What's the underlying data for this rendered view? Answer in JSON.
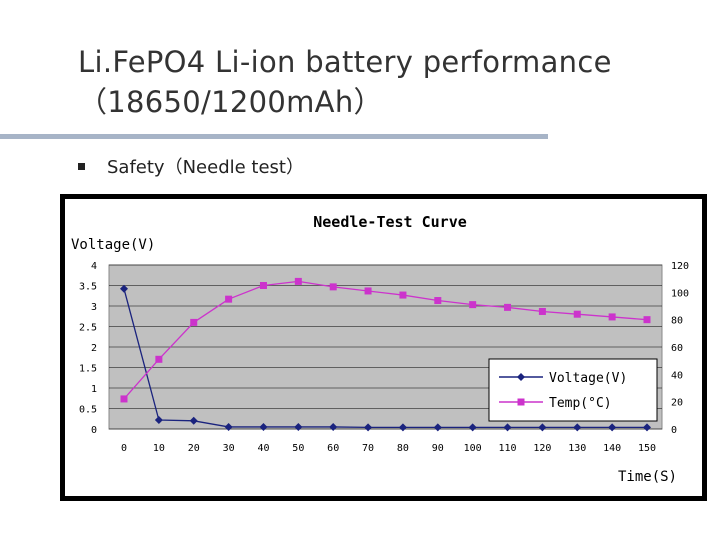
{
  "slide": {
    "title": "Li.FePO4 Li-ion battery performance（18650/1200mAh）",
    "bullet": "Safety（Needle test）"
  },
  "chart_data": {
    "type": "line",
    "title": "Needle-Test Curve",
    "xlabel": "Time(S)",
    "ylabel": "Voltage(V)",
    "x": [
      0,
      10,
      20,
      30,
      40,
      50,
      60,
      70,
      80,
      90,
      100,
      110,
      120,
      130,
      140,
      150
    ],
    "xticks": [
      "0",
      "10",
      "20",
      "30",
      "40",
      "50",
      "60",
      "70",
      "80",
      "90",
      "100",
      "110",
      "120",
      "130",
      "140",
      "150"
    ],
    "ylim": [
      0,
      4
    ],
    "yticks": [
      "0",
      "0.5",
      "1",
      "1.5",
      "2",
      "2.5",
      "3",
      "3.5",
      "4"
    ],
    "y2lim": [
      0,
      120
    ],
    "y2ticks": [
      "0",
      "20",
      "40",
      "60",
      "80",
      "100",
      "120"
    ],
    "grid": true,
    "legend_position": "bottom-right",
    "series": [
      {
        "name": "Voltage(V)",
        "axis": "left",
        "color": "#1a237e",
        "marker": "diamond",
        "values": [
          3.42,
          0.22,
          0.2,
          0.05,
          0.05,
          0.05,
          0.05,
          0.04,
          0.04,
          0.04,
          0.04,
          0.04,
          0.04,
          0.04,
          0.04,
          0.04
        ]
      },
      {
        "name": "Temp(°C)",
        "axis": "right",
        "color": "#cc33cc",
        "marker": "square",
        "values": [
          22,
          51,
          78,
          95,
          105,
          108,
          104,
          101,
          98,
          94,
          91,
          89,
          86,
          84,
          82,
          80
        ]
      }
    ]
  },
  "colors": {
    "plot_bg": "#c0c0c0",
    "frame": "#000000",
    "chart_bg": "#ffffff",
    "rule": "#a7b4c7"
  }
}
